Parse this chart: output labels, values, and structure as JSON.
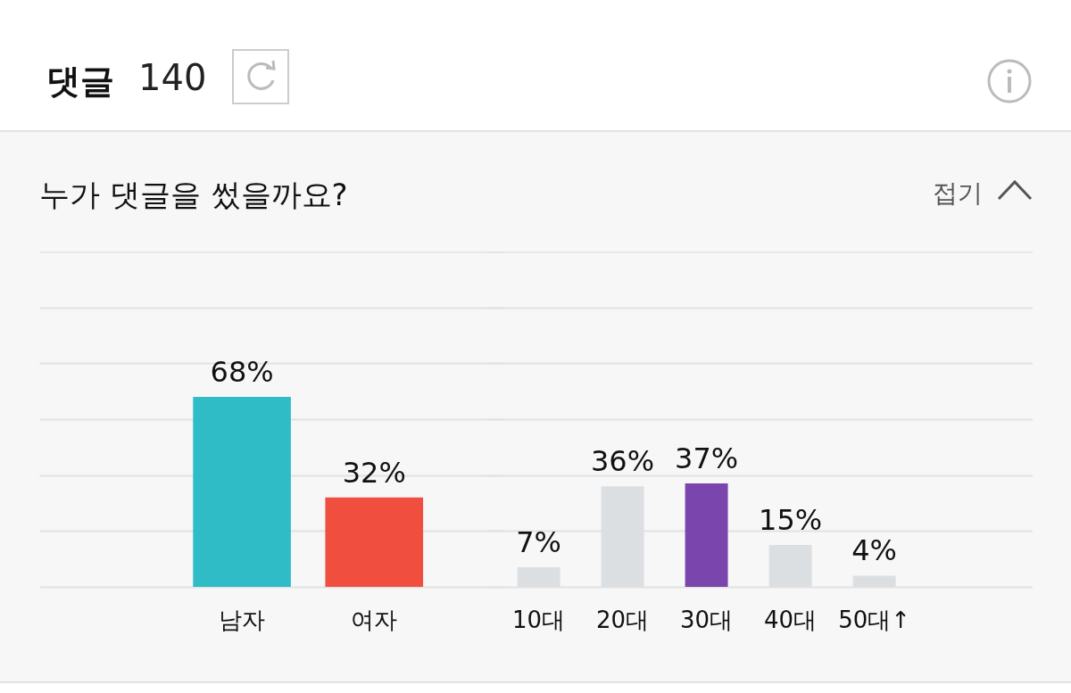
{
  "chart_data": [
    {
      "type": "bar",
      "title": "누가 댓글을 썼을까요?",
      "annotations": [
        "댓글",
        "140",
        "접기"
      ],
      "categories": [
        "남자",
        "여자"
      ],
      "values": [
        68,
        32
      ],
      "colors": [
        "#2fbcc6",
        "#f04e3e"
      ],
      "value_labels": [
        "68%",
        "32%"
      ],
      "ylim": [
        0,
        120
      ],
      "yticks": [
        {
          "value": 0,
          "label": null
        },
        {
          "value": 20,
          "label": null
        },
        {
          "value": 40,
          "label": null
        },
        {
          "value": 60,
          "label": null
        },
        {
          "value": 80,
          "label": null
        },
        {
          "value": 100,
          "label": null
        },
        {
          "value": 120,
          "label": null
        }
      ],
      "grid": "y",
      "tick_labels": "x"
    },
    {
      "type": "bar",
      "categories": [
        "10대",
        "20대",
        "30대",
        "40대",
        "50대↑"
      ],
      "values": [
        7,
        36,
        37,
        15,
        4
      ],
      "colors": [
        "#dcdfe2",
        "#dcdfe2",
        "#7b45ae",
        "#dcdfe2",
        "#dcdfe2"
      ],
      "value_labels": [
        "7%",
        "36%",
        "37%",
        "15%",
        "4%"
      ],
      "ylim": [
        0,
        120
      ],
      "yticks": [
        {
          "value": 0,
          "label": null
        },
        {
          "value": 20,
          "label": null
        },
        {
          "value": 40,
          "label": null
        },
        {
          "value": 60,
          "label": null
        },
        {
          "value": 80,
          "label": null
        },
        {
          "value": 100,
          "label": null
        },
        {
          "value": 120,
          "label": null
        }
      ],
      "grid": "y",
      "tick_labels": "x"
    }
  ]
}
